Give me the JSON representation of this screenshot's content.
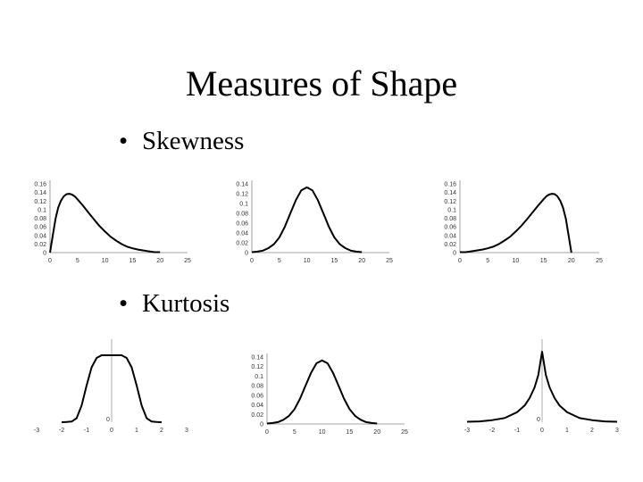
{
  "slide": {
    "title": "Measures of Shape",
    "bullets": [
      "•",
      "Skewness",
      "Kurtosis"
    ]
  },
  "chart_data": [
    {
      "type": "line",
      "group": "skewness",
      "shape": "right-skewed",
      "xticks": [
        "0",
        "5",
        "10",
        "15",
        "20",
        "25"
      ],
      "yticks": [
        "0",
        "0.02",
        "0.04",
        "0.06",
        "0.08",
        "0.1",
        "0.12",
        "0.14",
        "0.16"
      ],
      "xlim": [
        0,
        25
      ],
      "ylim": [
        0,
        0.16
      ],
      "grid": false,
      "x": [
        0,
        0.5,
        1,
        1.5,
        2,
        2.5,
        3,
        3.5,
        4,
        4.5,
        5,
        6,
        7,
        8,
        9,
        10,
        11,
        12,
        13,
        14,
        15,
        16,
        17,
        18,
        19,
        20
      ],
      "y": [
        0,
        0.04,
        0.079,
        0.105,
        0.121,
        0.131,
        0.136,
        0.137,
        0.135,
        0.131,
        0.124,
        0.109,
        0.093,
        0.077,
        0.062,
        0.049,
        0.037,
        0.028,
        0.02,
        0.014,
        0.01,
        0.007,
        0.005,
        0.003,
        0.001,
        0.001
      ]
    },
    {
      "type": "line",
      "group": "skewness",
      "shape": "symmetric",
      "xticks": [
        "0",
        "5",
        "10",
        "15",
        "20",
        "25"
      ],
      "yticks": [
        "0",
        "0.02",
        "0.04",
        "0.06",
        "0.08",
        "0.1",
        "0.12",
        "0.14"
      ],
      "xlim": [
        0,
        25
      ],
      "ylim": [
        0,
        0.14
      ],
      "grid": false,
      "x": [
        0,
        1,
        2,
        3,
        4,
        5,
        6,
        7,
        8,
        9,
        10,
        11,
        12,
        13,
        14,
        15,
        16,
        17,
        18,
        19,
        20
      ],
      "y": [
        0.001,
        0.002,
        0.004,
        0.009,
        0.017,
        0.031,
        0.053,
        0.08,
        0.107,
        0.127,
        0.133,
        0.127,
        0.107,
        0.08,
        0.053,
        0.031,
        0.017,
        0.009,
        0.004,
        0.002,
        0.001
      ]
    },
    {
      "type": "line",
      "group": "skewness",
      "shape": "left-skewed",
      "xticks": [
        "0",
        "5",
        "10",
        "15",
        "20",
        "25"
      ],
      "yticks": [
        "0",
        "0.02",
        "0.04",
        "0.06",
        "0.08",
        "0.1",
        "0.12",
        "0.14",
        "0.16"
      ],
      "xlim": [
        0,
        25
      ],
      "ylim": [
        0,
        0.16
      ],
      "grid": false,
      "x": [
        0,
        1,
        2,
        3,
        4,
        5,
        6,
        7,
        8,
        9,
        10,
        11,
        12,
        13,
        14,
        15,
        15.5,
        16,
        16.5,
        17,
        17.5,
        18,
        18.5,
        19,
        19.5,
        20
      ],
      "y": [
        0.001,
        0.001,
        0.003,
        0.005,
        0.007,
        0.01,
        0.014,
        0.02,
        0.028,
        0.037,
        0.049,
        0.062,
        0.077,
        0.093,
        0.109,
        0.124,
        0.131,
        0.135,
        0.137,
        0.136,
        0.131,
        0.121,
        0.105,
        0.079,
        0.04,
        0
      ]
    },
    {
      "type": "line",
      "group": "kurtosis",
      "shape": "platykurtic",
      "xticks": [
        "-3",
        "-2",
        "-1",
        "0",
        "1",
        "2",
        "3"
      ],
      "yticks": [
        "0"
      ],
      "xlim": [
        -3,
        3
      ],
      "grid": false,
      "x": [
        -2,
        -1.8,
        -1.6,
        -1.4,
        -1.2,
        -1,
        -0.8,
        -0.6,
        -0.4,
        -0.2,
        0,
        0.2,
        0.4,
        0.6,
        0.8,
        1,
        1.2,
        1.4,
        1.6,
        1.8,
        2
      ],
      "y": [
        0,
        0.003,
        0.01,
        0.06,
        0.25,
        0.55,
        0.82,
        0.96,
        1,
        1,
        1,
        1,
        1,
        0.96,
        0.82,
        0.55,
        0.25,
        0.06,
        0.01,
        0.003,
        0
      ]
    },
    {
      "type": "line",
      "group": "kurtosis",
      "shape": "mesokurtic",
      "xticks": [
        "0",
        "5",
        "10",
        "15",
        "20",
        "25"
      ],
      "yticks": [
        "0",
        "0.02",
        "0.04",
        "0.06",
        "0.08",
        "0.1",
        "0.12",
        "0.14"
      ],
      "xlim": [
        0,
        25
      ],
      "ylim": [
        0,
        0.14
      ],
      "grid": false,
      "x": [
        0,
        1,
        2,
        3,
        4,
        5,
        6,
        7,
        8,
        9,
        10,
        11,
        12,
        13,
        14,
        15,
        16,
        17,
        18,
        19,
        20
      ],
      "y": [
        0.001,
        0.002,
        0.004,
        0.009,
        0.017,
        0.031,
        0.053,
        0.08,
        0.107,
        0.127,
        0.133,
        0.127,
        0.107,
        0.08,
        0.053,
        0.031,
        0.017,
        0.009,
        0.004,
        0.002,
        0.001
      ]
    },
    {
      "type": "line",
      "group": "kurtosis",
      "shape": "leptokurtic",
      "xticks": [
        "-3",
        "-2",
        "-1",
        "0",
        "1",
        "2",
        "3"
      ],
      "yticks": [
        "0"
      ],
      "xlim": [
        -3,
        3
      ],
      "grid": false,
      "x": [
        -3,
        -2.5,
        -2,
        -1.5,
        -1,
        -0.7,
        -0.5,
        -0.3,
        -0.15,
        0,
        0.15,
        0.3,
        0.5,
        0.7,
        1,
        1.5,
        2,
        2.5,
        3
      ],
      "y": [
        0.005,
        0.01,
        0.025,
        0.05,
        0.12,
        0.2,
        0.29,
        0.42,
        0.57,
        0.85,
        0.57,
        0.42,
        0.29,
        0.2,
        0.12,
        0.05,
        0.025,
        0.01,
        0.005
      ]
    }
  ]
}
